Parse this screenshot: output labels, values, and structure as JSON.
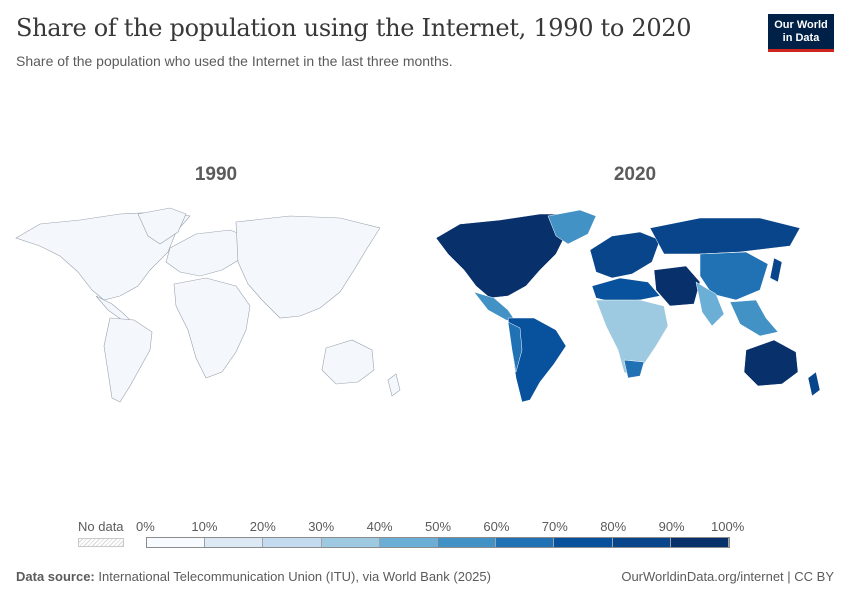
{
  "header": {
    "title": "Share of the population using the Internet, 1990 to 2020",
    "subtitle": "Share of the population who used the Internet in the last three months.",
    "logo_line1": "Our World",
    "logo_line2": "in Data"
  },
  "maps": [
    {
      "year": "1990"
    },
    {
      "year": "2020"
    }
  ],
  "legend": {
    "no_data_label": "No data",
    "ticks": [
      "0%",
      "10%",
      "20%",
      "30%",
      "40%",
      "50%",
      "60%",
      "70%",
      "80%",
      "90%",
      "100%"
    ],
    "colors": [
      "#f7fbff",
      "#dce9f5",
      "#c4daee",
      "#9ecae1",
      "#6baed6",
      "#4292c6",
      "#2171b5",
      "#08519c",
      "#08458a",
      "#08306b"
    ]
  },
  "footer": {
    "source_label": "Data source:",
    "source_text": "International Telecommunication Union (ITU), via World Bank (2025)",
    "right_text": "OurWorldinData.org/internet | CC BY"
  }
}
